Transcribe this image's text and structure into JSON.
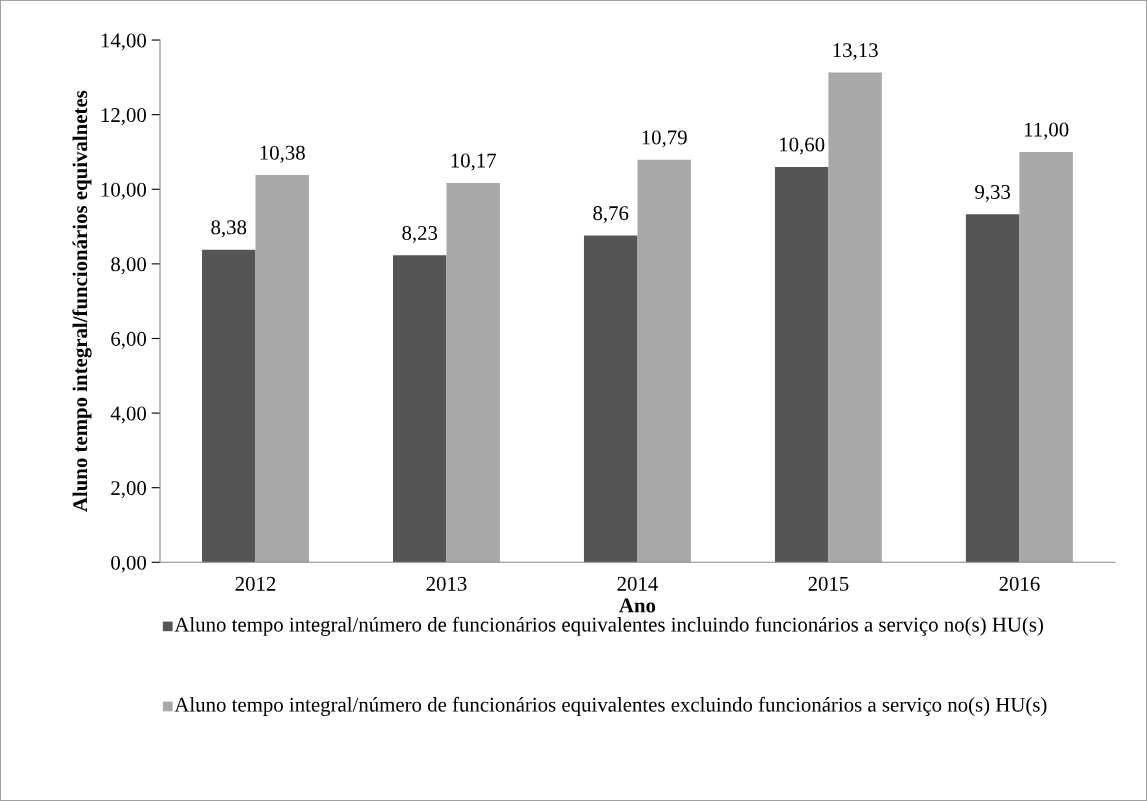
{
  "chart_data": {
    "type": "bar",
    "xlabel": "Ano",
    "ylabel": "Aluno tempo integral/funcionários equivalnetes",
    "categories": [
      "2012",
      "2013",
      "2014",
      "2015",
      "2016"
    ],
    "series": [
      {
        "name": "Aluno tempo integral/número de funcionários equivalentes incluindo funcionários a serviço no(s) HU(s)",
        "color": "#555555",
        "values": [
          8.38,
          8.23,
          8.76,
          10.6,
          9.33
        ],
        "value_labels": [
          "8,38",
          "8,23",
          "8,76",
          "10,60",
          "9,33"
        ]
      },
      {
        "name": "Aluno tempo integral/número de funcionários equivalentes excluindo funcionários a serviço no(s) HU(s)",
        "color": "#a8a8a8",
        "values": [
          10.38,
          10.17,
          10.79,
          13.13,
          11.0
        ],
        "value_labels": [
          "10,38",
          "10,17",
          "10,79",
          "13,13",
          "11,00"
        ]
      }
    ],
    "ylim": [
      0,
      14
    ],
    "yticks": [
      {
        "value": 0,
        "label": "0,00"
      },
      {
        "value": 2,
        "label": "2,00"
      },
      {
        "value": 4,
        "label": "4,00"
      },
      {
        "value": 6,
        "label": "6,00"
      },
      {
        "value": 8,
        "label": "8,00"
      },
      {
        "value": 10,
        "label": "10,00"
      },
      {
        "value": 12,
        "label": "12,00"
      },
      {
        "value": 14,
        "label": "14,00"
      }
    ],
    "grid": false,
    "legend": "bottom"
  }
}
